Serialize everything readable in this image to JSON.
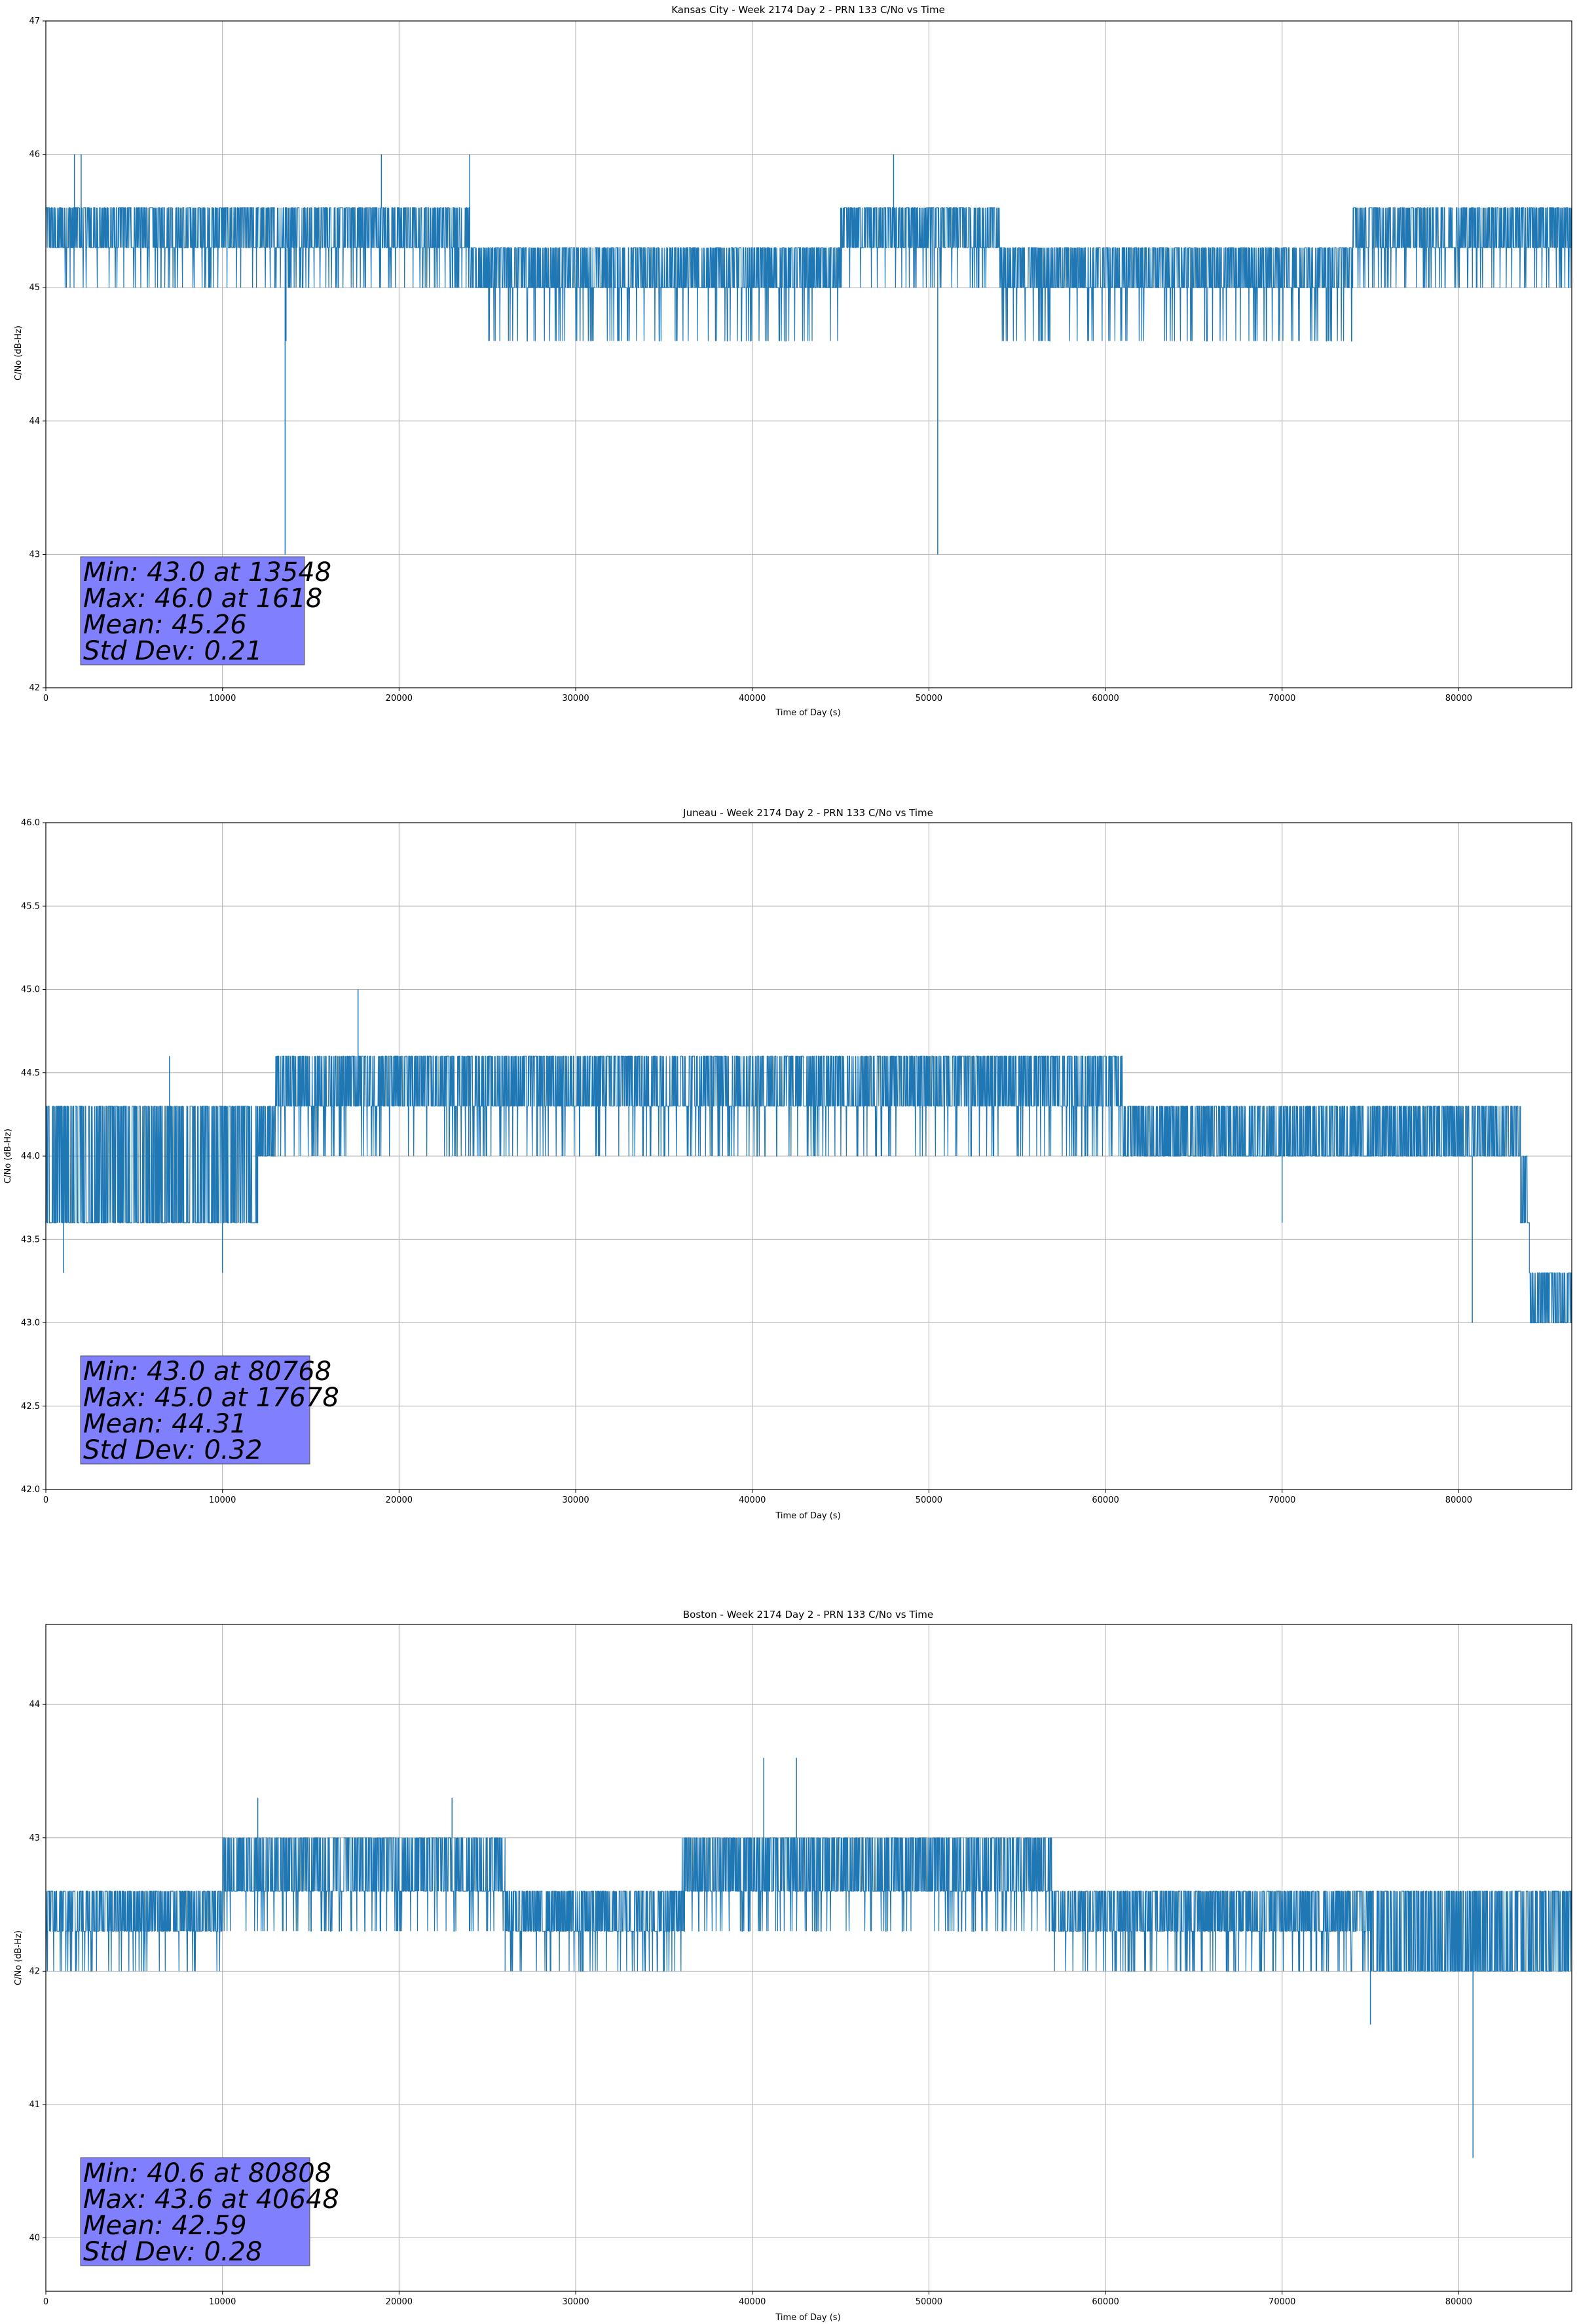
{
  "chart_data": [
    {
      "type": "line",
      "title": "Kansas City - Week 2174 Day 2 - PRN 133 C/No vs Time",
      "xlabel": "Time of Day (s)",
      "ylabel": "C/No (dB-Hz)",
      "xlim": [
        0,
        86400
      ],
      "ylim": [
        42,
        47
      ],
      "xticks": [
        0,
        10000,
        20000,
        30000,
        40000,
        50000,
        60000,
        70000,
        80000
      ],
      "xtick_labels": [
        "0",
        "10000",
        "20000",
        "30000",
        "40000",
        "50000",
        "60000",
        "70000",
        "80000"
      ],
      "yticks": [
        42,
        43,
        44,
        45,
        46,
        47
      ],
      "ytick_labels": [
        "42",
        "43",
        "44",
        "45",
        "46",
        "47"
      ],
      "grid": true,
      "color": "#1f77b4",
      "series": [
        {
          "segments": [
            {
              "x": [
                0,
                24000
              ],
              "level_low": 45.3,
              "level_high": 45.6,
              "dip": 45.0
            },
            {
              "x": [
                24000,
                45000
              ],
              "level_low": 45.0,
              "level_high": 45.3,
              "dip": 44.6
            },
            {
              "x": [
                45000,
                54000
              ],
              "level_low": 45.3,
              "level_high": 45.6,
              "dip": 45.0
            },
            {
              "x": [
                54000,
                74000
              ],
              "level_low": 45.0,
              "level_high": 45.3,
              "dip": 44.6
            },
            {
              "x": [
                74000,
                86400
              ],
              "level_low": 45.3,
              "level_high": 45.6,
              "dip": 45.0
            }
          ],
          "spikes": [
            {
              "x": 1618,
              "y": 46.0
            },
            {
              "x": 2000,
              "y": 46.0
            },
            {
              "x": 19000,
              "y": 46.0
            },
            {
              "x": 24000,
              "y": 46.0
            },
            {
              "x": 48000,
              "y": 46.0
            },
            {
              "x": 13548,
              "y": 43.0
            },
            {
              "x": 13600,
              "y": 44.6
            },
            {
              "x": 50500,
              "y": 43.0
            }
          ]
        }
      ],
      "stats": {
        "min_line": "Min: 43.0 at 13548",
        "max_line": "Max: 46.0 at 1618",
        "mean_line": "Mean: 45.26",
        "std_line": "Std Dev: 0.21"
      }
    },
    {
      "type": "line",
      "title": "Juneau - Week 2174 Day 2 - PRN 133 C/No vs Time",
      "xlabel": "Time of Day (s)",
      "ylabel": "C/No (dB-Hz)",
      "xlim": [
        0,
        86400
      ],
      "ylim": [
        42.0,
        46.0
      ],
      "xticks": [
        0,
        10000,
        20000,
        30000,
        40000,
        50000,
        60000,
        70000,
        80000
      ],
      "xtick_labels": [
        "0",
        "10000",
        "20000",
        "30000",
        "40000",
        "50000",
        "60000",
        "70000",
        "80000"
      ],
      "yticks": [
        42.0,
        42.5,
        43.0,
        43.5,
        44.0,
        44.5,
        45.0,
        45.5,
        46.0
      ],
      "ytick_labels": [
        "42.0",
        "42.5",
        "43.0",
        "43.5",
        "44.0",
        "44.5",
        "45.0",
        "45.5",
        "46.0"
      ],
      "grid": true,
      "color": "#1f77b4",
      "series": [
        {
          "segments": [
            {
              "x": [
                0,
                12000
              ],
              "level_low": 43.6,
              "level_high": 44.3,
              "dip": 43.6
            },
            {
              "x": [
                12000,
                13000
              ],
              "level_low": 44.0,
              "level_high": 44.3,
              "dip": 44.0
            },
            {
              "x": [
                13000,
                61000
              ],
              "level_low": 44.3,
              "level_high": 44.6,
              "dip": 44.0
            },
            {
              "x": [
                61000,
                83500
              ],
              "level_low": 44.0,
              "level_high": 44.3,
              "dip": 44.0
            },
            {
              "x": [
                83500,
                84000
              ],
              "level_low": 43.6,
              "level_high": 44.0,
              "dip": 43.6
            },
            {
              "x": [
                84000,
                86400
              ],
              "level_low": 43.0,
              "level_high": 43.3,
              "dip": 43.0
            }
          ],
          "spikes": [
            {
              "x": 17678,
              "y": 45.0
            },
            {
              "x": 7000,
              "y": 44.6
            },
            {
              "x": 1000,
              "y": 43.3
            },
            {
              "x": 10000,
              "y": 43.3
            },
            {
              "x": 70000,
              "y": 43.6
            },
            {
              "x": 80768,
              "y": 43.0
            }
          ]
        }
      ],
      "stats": {
        "min_line": "Min: 43.0 at 80768",
        "max_line": "Max: 45.0 at 17678",
        "mean_line": "Mean: 44.31",
        "std_line": "Std Dev: 0.32"
      }
    },
    {
      "type": "line",
      "title": "Boston - Week 2174 Day 2 - PRN 133 C/No vs Time",
      "xlabel": "Time of Day (s)",
      "ylabel": "C/No (dB-Hz)",
      "xlim": [
        0,
        86400
      ],
      "ylim": [
        39.6,
        44.6
      ],
      "xticks": [
        0,
        10000,
        20000,
        30000,
        40000,
        50000,
        60000,
        70000,
        80000
      ],
      "xtick_labels": [
        "0",
        "10000",
        "20000",
        "30000",
        "40000",
        "50000",
        "60000",
        "70000",
        "80000"
      ],
      "yticks": [
        40,
        41,
        42,
        43,
        44
      ],
      "ytick_labels": [
        "40",
        "41",
        "42",
        "43",
        "44"
      ],
      "grid": true,
      "color": "#1f77b4",
      "series": [
        {
          "segments": [
            {
              "x": [
                0,
                10000
              ],
              "level_low": 42.3,
              "level_high": 42.6,
              "dip": 42.0
            },
            {
              "x": [
                10000,
                26000
              ],
              "level_low": 42.6,
              "level_high": 43.0,
              "dip": 42.3
            },
            {
              "x": [
                26000,
                36000
              ],
              "level_low": 42.3,
              "level_high": 42.6,
              "dip": 42.0
            },
            {
              "x": [
                36000,
                57000
              ],
              "level_low": 42.6,
              "level_high": 43.0,
              "dip": 42.3
            },
            {
              "x": [
                57000,
                75000
              ],
              "level_low": 42.3,
              "level_high": 42.6,
              "dip": 42.0
            },
            {
              "x": [
                75000,
                86400
              ],
              "level_low": 42.0,
              "level_high": 42.6,
              "dip": 42.0
            }
          ],
          "spikes": [
            {
              "x": 40648,
              "y": 43.6
            },
            {
              "x": 42500,
              "y": 43.6
            },
            {
              "x": 12000,
              "y": 43.3
            },
            {
              "x": 23000,
              "y": 43.3
            },
            {
              "x": 75000,
              "y": 41.6
            },
            {
              "x": 80808,
              "y": 40.6
            }
          ]
        }
      ],
      "stats": {
        "min_line": "Min: 40.6 at 80808",
        "max_line": "Max: 43.6 at 40648",
        "mean_line": "Mean: 42.59",
        "std_line": "Std Dev: 0.28"
      }
    }
  ]
}
